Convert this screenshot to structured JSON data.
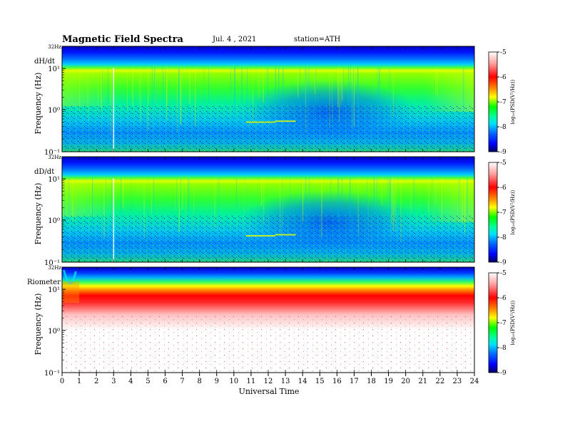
{
  "header": {
    "title": "Magnetic  Field  Spectra",
    "date": "Jul.  4  , 2021",
    "station": "station=ATH"
  },
  "chart_data": {
    "type": "heatmap",
    "xlabel": "Universal Time",
    "xlim": [
      0,
      24
    ],
    "x_ticks": [
      "0",
      "1",
      "2",
      "3",
      "4",
      "5",
      "6",
      "7",
      "8",
      "9",
      "10",
      "11",
      "12",
      "13",
      "14",
      "15",
      "16",
      "17",
      "18",
      "19",
      "20",
      "21",
      "22",
      "23",
      "24"
    ],
    "panels": [
      {
        "label": "dH/dt",
        "ylabel": "Frequency  (Hz)",
        "y_scale": "log",
        "y_ticks": [
          "10⁻¹",
          "10⁰",
          "10¹"
        ],
        "top_label": "32Hz",
        "colorbar": {
          "label": "log₁₀(PSD(V²/Hz))",
          "range": [
            -9,
            -5
          ],
          "ticks": [
            "-5",
            "-6",
            "-7",
            "-8",
            "-9"
          ]
        },
        "description_levels": {
          "high_freq_band": -8.3,
          "mid_band": -7.0,
          "low_freq": -7.8
        }
      },
      {
        "label": "dD/dt",
        "ylabel": "Frequency  (Hz)",
        "y_scale": "log",
        "y_ticks": [
          "10⁻¹",
          "10⁰",
          "10¹"
        ],
        "top_label": "32Hz",
        "colorbar": {
          "label": "log₁₀(PSD(V²/Hz))",
          "range": [
            -9,
            -5
          ],
          "ticks": [
            "-5",
            "-6",
            "-7",
            "-8",
            "-9"
          ]
        },
        "description_levels": {
          "high_freq_band": -8.3,
          "mid_band": -7.0,
          "low_freq": -7.8
        }
      },
      {
        "label": "Riometer",
        "ylabel": "Frequency  (Hz)",
        "y_scale": "log",
        "y_ticks": [
          "10⁻¹",
          "10⁰",
          "10¹"
        ],
        "top_label": "32Hz",
        "colorbar": {
          "label": "log₁₀(PSD(V²/Hz))",
          "range": [
            -9,
            -5
          ],
          "ticks": [
            "-5",
            "-6",
            "-7",
            "-8",
            "-9"
          ]
        },
        "description_levels": {
          "high_freq_band": -8.6,
          "mid_band": -6.0,
          "low_freq": -5.0
        }
      }
    ]
  }
}
